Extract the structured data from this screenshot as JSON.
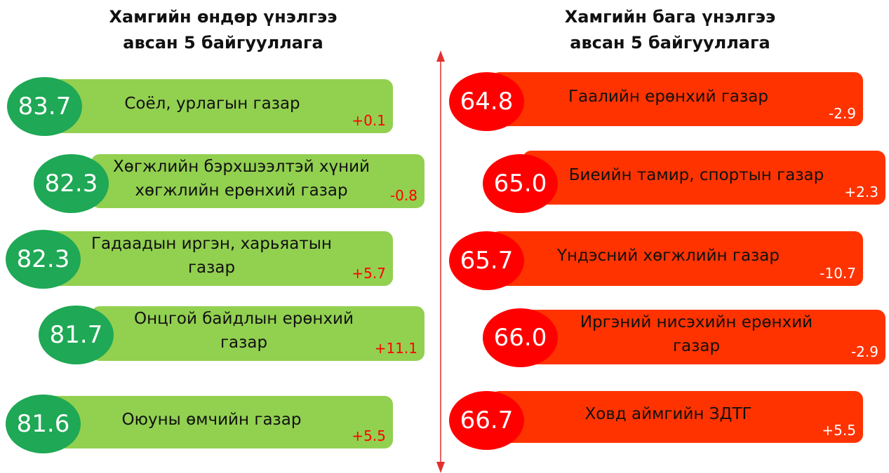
{
  "left": {
    "title": [
      "Хамгийн өндөр үнэлгээ",
      "авсан 5 байгууллага"
    ],
    "items": [
      {
        "score": "83.7",
        "name": [
          "Соёл, урлагын газар"
        ],
        "change": "+0.1"
      },
      {
        "score": "82.3",
        "name": [
          "Хөгжлийн бэрхшээлтэй хүний",
          "хөгжлийн ерөнхий газар"
        ],
        "change": "-0.8"
      },
      {
        "score": "82.3",
        "name": [
          "Гадаадын иргэн, харьяатын",
          "газар"
        ],
        "change": "+5.7"
      },
      {
        "score": "81.7",
        "name": [
          "Онцгой байдлын ерөнхий",
          "газар"
        ],
        "change": "+11.1"
      },
      {
        "score": "81.6",
        "name": [
          "Оюуны өмчийн газар"
        ],
        "change": "+5.5"
      }
    ]
  },
  "right": {
    "title": [
      "Хамгийн бага үнэлгээ",
      "авсан 5 байгууллага"
    ],
    "items": [
      {
        "score": "64.8",
        "name": [
          "Гаалийн ерөнхий газар"
        ],
        "change": "-2.9"
      },
      {
        "score": "65.0",
        "name": [
          "Биеийн тамир, спортын газар"
        ],
        "change": "+2.3"
      },
      {
        "score": "65.7",
        "name": [
          "Үндэсний хөгжлийн газар"
        ],
        "change": "-10.7"
      },
      {
        "score": "66.0",
        "name": [
          "Иргэний нисэхийн ерөнхий",
          "газар"
        ],
        "change": "-2.9"
      },
      {
        "score": "66.7",
        "name": [
          "Ховд аймгийн ЗДТГ"
        ],
        "change": "+5.5"
      }
    ]
  }
}
